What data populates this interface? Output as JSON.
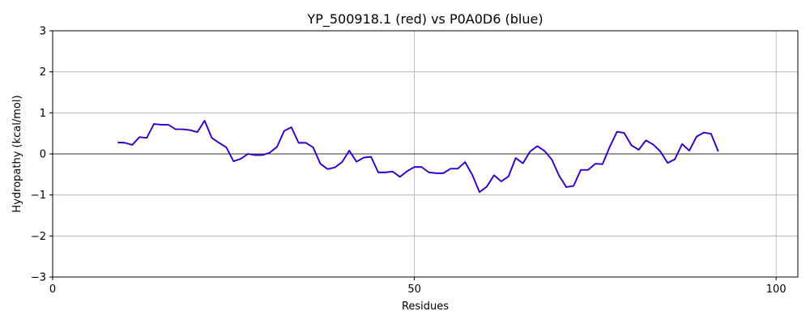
{
  "chart_data": {
    "type": "line",
    "title": "YP_500918.1 (red) vs P0A0D6 (blue)",
    "xlabel": "Residues",
    "ylabel": "Hydropathy (kcal/mol)",
    "xlim": [
      0,
      103
    ],
    "ylim": [
      -3,
      3
    ],
    "xticks": [
      0,
      50,
      100
    ],
    "yticks": [
      -3,
      -2,
      -1,
      0,
      1,
      2,
      3
    ],
    "grid": true,
    "zero_line": true,
    "series": [
      {
        "color": "#ff0000",
        "x": [
          9,
          10,
          11,
          12,
          13,
          14,
          15,
          16,
          17,
          18,
          19,
          20,
          21,
          22,
          23,
          24,
          25,
          26,
          27,
          28,
          29,
          30,
          31,
          32,
          33,
          34,
          35,
          36,
          37,
          38,
          39,
          40,
          41,
          42,
          43,
          44,
          45,
          46,
          47,
          48,
          49,
          50,
          51,
          52,
          53,
          54,
          55,
          56,
          57,
          58,
          59,
          60,
          61,
          62,
          63,
          64,
          65,
          66,
          67,
          68,
          69,
          70,
          71,
          72,
          73,
          74,
          75,
          76,
          77,
          78,
          79,
          80,
          81,
          82,
          83,
          84,
          85,
          86,
          87,
          88,
          89,
          90,
          91,
          92
        ],
        "y": [
          0.28,
          0.27,
          0.22,
          0.41,
          0.39,
          0.73,
          0.71,
          0.71,
          0.6,
          0.6,
          0.58,
          0.53,
          0.81,
          0.39,
          0.27,
          0.16,
          -0.18,
          -0.12,
          0.0,
          -0.03,
          -0.03,
          0.03,
          0.17,
          0.56,
          0.65,
          0.27,
          0.27,
          0.16,
          -0.24,
          -0.37,
          -0.33,
          -0.2,
          0.08,
          -0.19,
          -0.09,
          -0.07,
          -0.45,
          -0.45,
          -0.43,
          -0.56,
          -0.42,
          -0.32,
          -0.32,
          -0.45,
          -0.47,
          -0.47,
          -0.36,
          -0.36,
          -0.2,
          -0.51,
          -0.93,
          -0.8,
          -0.52,
          -0.67,
          -0.55,
          -0.1,
          -0.23,
          0.06,
          0.19,
          0.07,
          -0.14,
          -0.53,
          -0.81,
          -0.78,
          -0.39,
          -0.39,
          -0.24,
          -0.25,
          0.17,
          0.54,
          0.51,
          0.21,
          0.1,
          0.33,
          0.23,
          0.06,
          -0.22,
          -0.13,
          0.24,
          0.08,
          0.42,
          0.52,
          0.49,
          0.06
        ]
      },
      {
        "color": "#0000ff",
        "x": [
          9,
          10,
          11,
          12,
          13,
          14,
          15,
          16,
          17,
          18,
          19,
          20,
          21,
          22,
          23,
          24,
          25,
          26,
          27,
          28,
          29,
          30,
          31,
          32,
          33,
          34,
          35,
          36,
          37,
          38,
          39,
          40,
          41,
          42,
          43,
          44,
          45,
          46,
          47,
          48,
          49,
          50,
          51,
          52,
          53,
          54,
          55,
          56,
          57,
          58,
          59,
          60,
          61,
          62,
          63,
          64,
          65,
          66,
          67,
          68,
          69,
          70,
          71,
          72,
          73,
          74,
          75,
          76,
          77,
          78,
          79,
          80,
          81,
          82,
          83,
          84,
          85,
          86,
          87,
          88,
          89,
          90,
          91,
          92
        ],
        "y": [
          0.28,
          0.27,
          0.22,
          0.41,
          0.39,
          0.73,
          0.71,
          0.71,
          0.6,
          0.6,
          0.58,
          0.53,
          0.81,
          0.39,
          0.27,
          0.16,
          -0.18,
          -0.12,
          0.0,
          -0.03,
          -0.03,
          0.03,
          0.17,
          0.56,
          0.65,
          0.27,
          0.27,
          0.16,
          -0.24,
          -0.37,
          -0.33,
          -0.2,
          0.08,
          -0.19,
          -0.09,
          -0.07,
          -0.45,
          -0.45,
          -0.43,
          -0.56,
          -0.42,
          -0.32,
          -0.32,
          -0.45,
          -0.47,
          -0.47,
          -0.36,
          -0.36,
          -0.2,
          -0.51,
          -0.93,
          -0.8,
          -0.52,
          -0.67,
          -0.55,
          -0.1,
          -0.23,
          0.06,
          0.19,
          0.07,
          -0.14,
          -0.53,
          -0.81,
          -0.78,
          -0.39,
          -0.39,
          -0.24,
          -0.25,
          0.17,
          0.54,
          0.51,
          0.21,
          0.1,
          0.33,
          0.23,
          0.06,
          -0.22,
          -0.13,
          0.24,
          0.08,
          0.42,
          0.52,
          0.49,
          0.06
        ]
      }
    ]
  }
}
